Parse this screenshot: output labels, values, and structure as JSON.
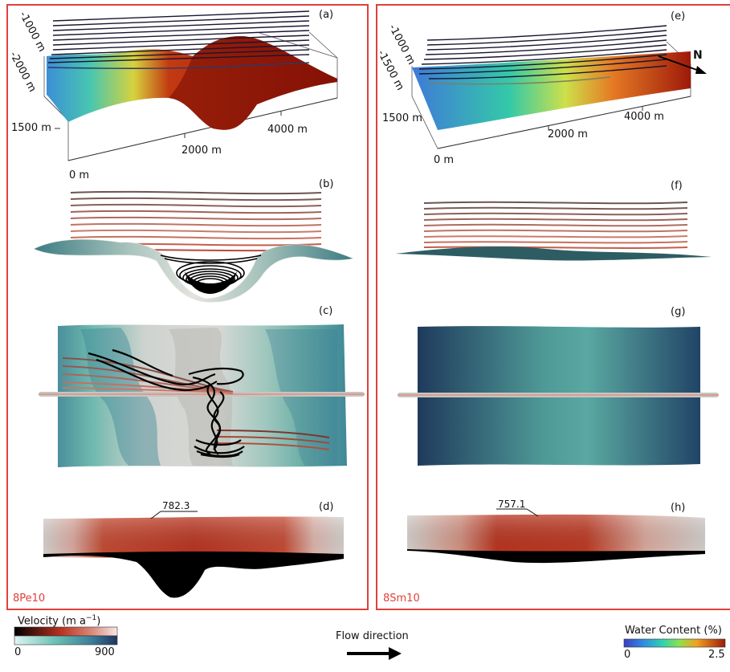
{
  "cases": {
    "left": {
      "label": "8Pe10"
    },
    "right": {
      "label": "8Sm10"
    }
  },
  "panels": {
    "a": "(a)",
    "b": "(b)",
    "c": "(c)",
    "d": "(d)",
    "e": "(e)",
    "f": "(f)",
    "g": "(g)",
    "h": "(h)"
  },
  "axes_a": {
    "z1": "-1000 m",
    "z2": "-2000 m",
    "y": "1500 m",
    "x0": "0 m",
    "x1": "2000 m",
    "x2": "4000 m"
  },
  "axes_e": {
    "z1": "-1000 m",
    "z2": "-1500 m",
    "y": "1500 m",
    "x0": "0 m",
    "x1": "2000 m",
    "x2": "4000 m",
    "north": "N"
  },
  "annotations": {
    "d_value": "782.3",
    "h_value": "757.1"
  },
  "legend": {
    "velocity_title": "Velocity (m a",
    "velocity_sup": "−1",
    "velocity_close": ")",
    "velocity_min": "0",
    "velocity_max": "900",
    "flow_direction": "Flow direction",
    "water_title": "Water Content (%)",
    "water_min": "0",
    "water_max": "2.5",
    "colors": {
      "frame": "#e0403c",
      "velocity_dark": "#000000",
      "velocity_red": "#b8321f",
      "velocity_light": "#f7e7e4",
      "teal_light": "#dff5f0",
      "teal_mid": "#5fb6ad",
      "teal_dark": "#1f3561",
      "water_low": "#3b3fc3",
      "water_mid": "#6fd35a",
      "water_high": "#9e1a0a"
    }
  }
}
